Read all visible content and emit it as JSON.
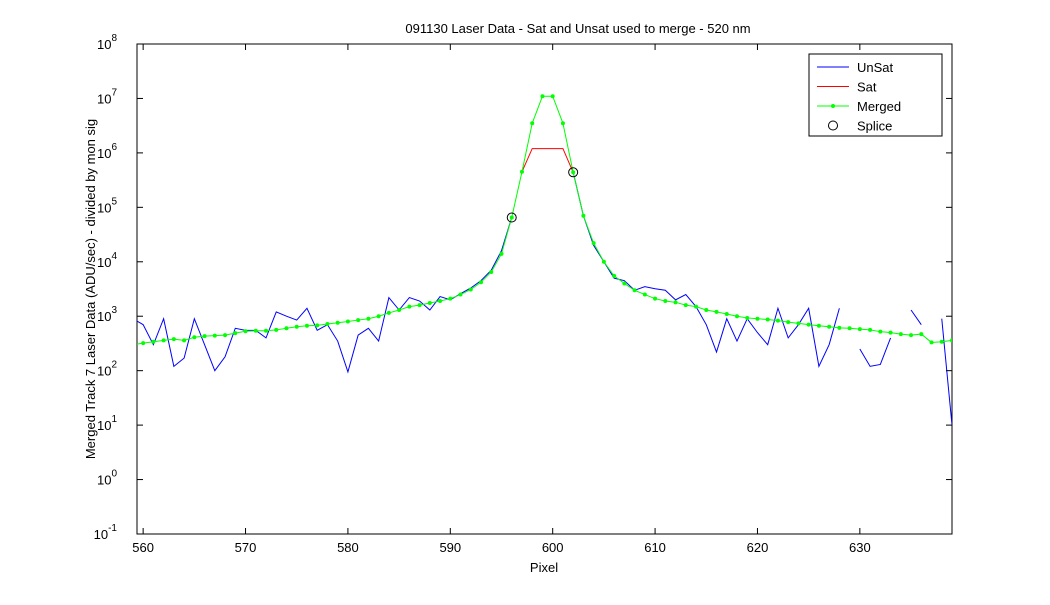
{
  "chart_data": {
    "type": "line",
    "title": "091130 Laser Data - Sat and Unsat used to merge  - 520 nm",
    "xlabel": "Pixel",
    "ylabel": "Merged Track 7 Laser Data (ADU/sec) - divided by mon sig",
    "log_y": true,
    "legend": "upper right",
    "xlim": [
      559.4,
      639
    ],
    "ylim": [
      0.1,
      100000000
    ],
    "xticks": [
      560,
      570,
      580,
      590,
      600,
      610,
      620,
      630
    ],
    "yticks": [
      {
        "value": 0.1,
        "label": "10",
        "sup": "-1"
      },
      {
        "value": 1,
        "label": "10",
        "sup": "0"
      },
      {
        "value": 10,
        "label": "10",
        "sup": "1"
      },
      {
        "value": 100,
        "label": "10",
        "sup": "2"
      },
      {
        "value": 1000,
        "label": "10",
        "sup": "3"
      },
      {
        "value": 10000,
        "label": "10",
        "sup": "4"
      },
      {
        "value": 100000,
        "label": "10",
        "sup": "5"
      },
      {
        "value": 1000000,
        "label": "10",
        "sup": "6"
      },
      {
        "value": 10000000,
        "label": "10",
        "sup": "7"
      },
      {
        "value": 100000000,
        "label": "10",
        "sup": "8"
      }
    ],
    "x": [
      559,
      560,
      561,
      562,
      563,
      564,
      565,
      566,
      567,
      568,
      569,
      570,
      571,
      572,
      573,
      574,
      575,
      576,
      577,
      578,
      579,
      580,
      581,
      582,
      583,
      584,
      585,
      586,
      587,
      588,
      589,
      590,
      591,
      592,
      593,
      594,
      595,
      596,
      597,
      598,
      599,
      600,
      601,
      602,
      603,
      604,
      605,
      606,
      607,
      608,
      609,
      610,
      611,
      612,
      613,
      614,
      615,
      616,
      617,
      618,
      619,
      620,
      621,
      622,
      623,
      624,
      625,
      626,
      627,
      628,
      629,
      630,
      631,
      632,
      633,
      634,
      635,
      636,
      637,
      638,
      639
    ],
    "series": [
      {
        "name": "UnSat",
        "color": "#0000ff",
        "marker": "none",
        "values": [
          900,
          700,
          300,
          900,
          120,
          170,
          900,
          300,
          100,
          180,
          600,
          550,
          550,
          400,
          1200,
          1000,
          850,
          1400,
          550,
          700,
          350,
          95,
          450,
          600,
          350,
          2200,
          1300,
          2200,
          1900,
          1300,
          2300,
          2000,
          2600,
          3300,
          4500,
          7000,
          16000,
          65000,
          null,
          null,
          null,
          null,
          null,
          440000,
          70000,
          20000,
          10000,
          5000,
          4500,
          3000,
          3500,
          3200,
          3000,
          2000,
          2500,
          1500,
          700,
          220,
          900,
          350,
          900,
          500,
          300,
          1400,
          400,
          700,
          1400,
          120,
          300,
          1400,
          null,
          250,
          120,
          130,
          400,
          null,
          1300,
          700,
          null,
          900,
          10
        ]
      },
      {
        "name": "Sat",
        "color": "#ff0000",
        "marker": "none",
        "values": [
          null,
          null,
          null,
          null,
          null,
          null,
          null,
          null,
          null,
          null,
          null,
          null,
          null,
          null,
          null,
          null,
          null,
          null,
          null,
          null,
          null,
          null,
          null,
          null,
          null,
          null,
          null,
          null,
          null,
          null,
          null,
          null,
          null,
          null,
          null,
          null,
          null,
          null,
          450000,
          1200000,
          1200000,
          1200000,
          1200000,
          440000,
          null,
          null,
          null,
          null,
          null,
          null,
          null,
          null,
          null,
          null,
          null,
          null,
          null,
          null,
          null,
          null,
          null,
          null,
          null,
          null,
          null,
          null,
          null,
          null,
          null,
          null,
          null,
          null,
          null,
          null,
          null,
          null,
          null,
          null,
          null,
          null,
          null
        ]
      },
      {
        "name": "Merged",
        "color": "#00ff00",
        "marker": "dot",
        "values": [
          300,
          320,
          340,
          360,
          380,
          360,
          410,
          430,
          440,
          450,
          490,
          530,
          540,
          540,
          560,
          600,
          640,
          670,
          680,
          720,
          760,
          800,
          850,
          900,
          1000,
          1150,
          1300,
          1500,
          1600,
          1750,
          1900,
          2100,
          2500,
          3100,
          4200,
          6500,
          14000,
          65000,
          450000,
          3500000,
          11000000,
          11000000,
          3500000,
          440000,
          70000,
          22000,
          10000,
          5500,
          4000,
          3000,
          2500,
          2100,
          1900,
          1800,
          1600,
          1500,
          1300,
          1200,
          1100,
          1000,
          930,
          900,
          870,
          830,
          780,
          740,
          700,
          670,
          640,
          610,
          600,
          580,
          560,
          520,
          500,
          470,
          450,
          470,
          330,
          340,
          360
        ]
      },
      {
        "name": "Splice",
        "color": "#000000",
        "marker": "circle",
        "x": [
          596,
          602
        ],
        "values": [
          65000,
          440000
        ]
      }
    ]
  }
}
